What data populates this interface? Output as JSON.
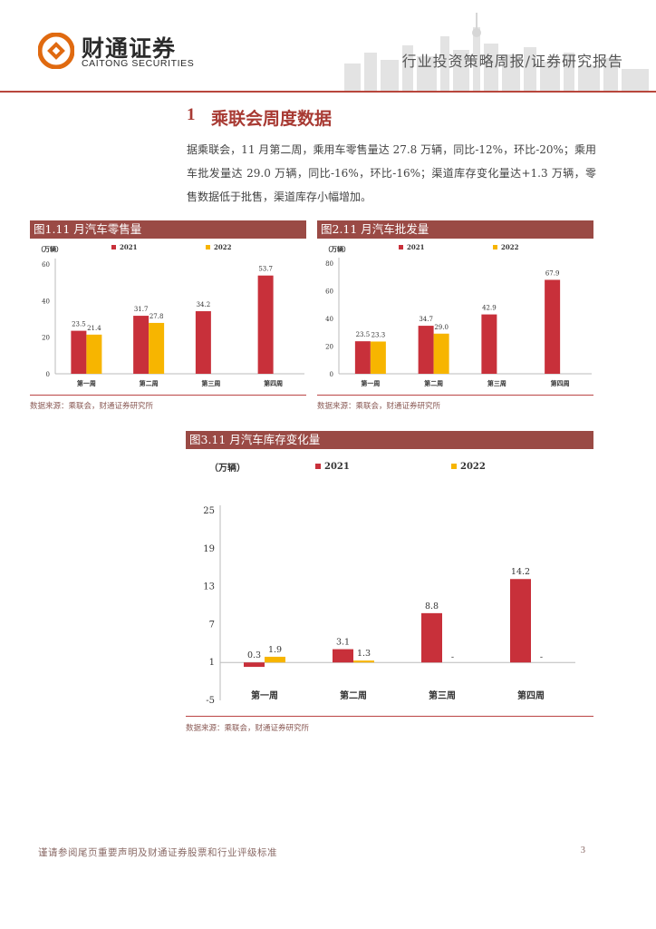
{
  "header": {
    "brand_cn": "财通证券",
    "brand_en": "CAITONG SECURITIES",
    "report_type": "行业投资策略周报/证券研究报告"
  },
  "section": {
    "number": "1",
    "title": "乘联会周度数据",
    "paragraph": "据乘联会，11 月第二周，乘用车零售量达 27.8 万辆，同比-12%，环比-20%；乘用车批发量达 29.0 万辆，同比-16%，环比-16%；渠道库存变化量达+1.3 万辆，零售数据低于批售，渠道库存小幅增加。"
  },
  "figures": [
    {
      "title": "图1.11 月汽车零售量",
      "source": "数据来源：乘联会，财通证券研究所"
    },
    {
      "title": "图2.11 月汽车批发量",
      "source": "数据来源：乘联会，财通证券研究所"
    },
    {
      "title": "图3.11 月汽车库存变化量",
      "source": "数据来源：乘联会，财通证券研究所"
    }
  ],
  "colors": {
    "series_2021": "#c8303a",
    "series_2022": "#f7b500",
    "accent": "#a83a33",
    "title_bar": "#9a4a45"
  },
  "chart_data": [
    {
      "type": "bar",
      "unit_label": "（万辆）",
      "categories": [
        "第一周",
        "第二周",
        "第三周",
        "第四周"
      ],
      "series": [
        {
          "name": "2021",
          "values": [
            23.5,
            31.7,
            34.2,
            53.7
          ],
          "labels": [
            "23.5",
            "31.7",
            "34.2",
            "53.7"
          ]
        },
        {
          "name": "2022",
          "values": [
            21.4,
            27.8,
            null,
            null
          ],
          "labels": [
            "21.4",
            "27.8",
            "",
            ""
          ]
        }
      ],
      "yticks": [
        0,
        20,
        40,
        60
      ],
      "ylim": [
        0,
        60
      ]
    },
    {
      "type": "bar",
      "unit_label": "（万辆）",
      "categories": [
        "第一周",
        "第二周",
        "第三周",
        "第四周"
      ],
      "series": [
        {
          "name": "2021",
          "values": [
            23.5,
            34.7,
            42.9,
            67.9
          ],
          "labels": [
            "23.5",
            "34.7",
            "42.9",
            "67.9"
          ]
        },
        {
          "name": "2022",
          "values": [
            23.3,
            29.0,
            null,
            null
          ],
          "labels": [
            "23.3",
            "29.0",
            "",
            ""
          ]
        }
      ],
      "yticks": [
        0,
        20,
        40,
        60,
        80
      ],
      "ylim": [
        0,
        80
      ]
    },
    {
      "type": "bar",
      "unit_label": "（万辆）",
      "categories": [
        "第一周",
        "第二周",
        "第三周",
        "第四周"
      ],
      "series": [
        {
          "name": "2021",
          "values": [
            0.3,
            3.1,
            8.8,
            14.2
          ],
          "labels": [
            "0.3",
            "3.1",
            "8.8",
            "14.2"
          ]
        },
        {
          "name": "2022",
          "values": [
            1.9,
            1.3,
            null,
            null
          ],
          "labels": [
            "1.9",
            "1.3",
            "-",
            "-"
          ]
        }
      ],
      "yticks": [
        -5,
        1,
        7,
        13,
        19,
        25
      ],
      "ylim": [
        -5,
        25
      ],
      "baseline": 1
    }
  ],
  "footer": {
    "disclaimer": "谨请参阅尾页重要声明及财通证券股票和行业评级标准",
    "page": "3"
  }
}
